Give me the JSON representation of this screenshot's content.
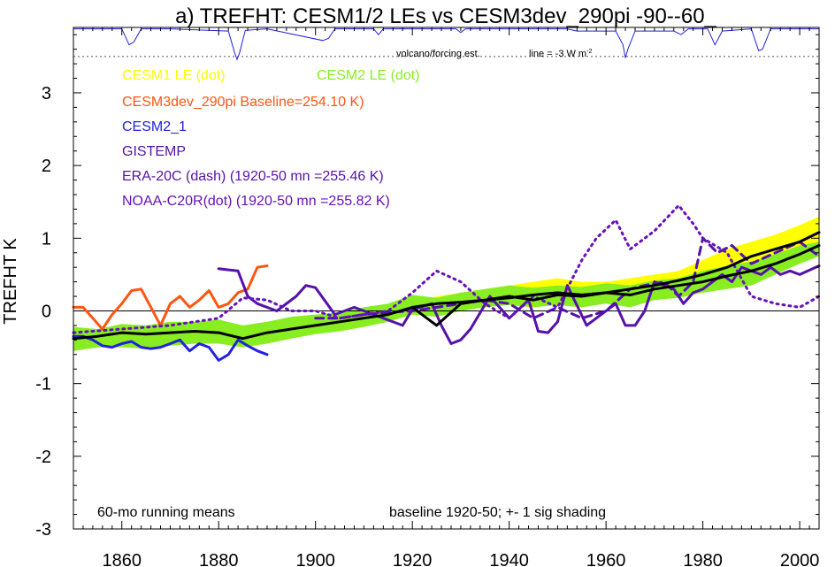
{
  "chart_data": {
    "type": "line",
    "title": "a) TREFHT: CESM1/2 LEs vs CESM3dev_290pi -90--60_",
    "ylabel": "TREFHT K",
    "xlabel": "",
    "xlim": [
      1850,
      2004
    ],
    "ylim": [
      -3,
      3.9
    ],
    "x_ticks": [
      1860,
      1880,
      1900,
      1920,
      1940,
      1960,
      1980,
      2000
    ],
    "y_ticks": [
      -3,
      -2,
      -1,
      0,
      1,
      2,
      3
    ],
    "zero_line": 0,
    "grid": false,
    "annotations": {
      "volcano_label": "volcano/forcing est.",
      "volcano_line_label": "line = -3 W m",
      "volcano_line_sup": "-2",
      "running_means": "60-mo running means",
      "baseline_note": "baseline 1920-50; +- 1 sig shading"
    },
    "colors": {
      "cesm1": "#ffff00",
      "cesm2": "#88ee22",
      "cesm3": "#ff5511",
      "cesm2_1": "#2222dd",
      "gistemp": "#5511aa",
      "era20c": "#5511aa",
      "noaa": "#6611bb",
      "mean": "#000000",
      "volcano": "#2222dd"
    },
    "legend": [
      {
        "label": "CESM1 LE (dot)",
        "color": "#ffff00"
      },
      {
        "label": "CESM2 LE (dot)",
        "color": "#88ee22"
      },
      {
        "label": "CESM3dev_290pi Baseline=254.10 K)",
        "color": "#ff5511"
      },
      {
        "label": "CESM2_1",
        "color": "#2222dd"
      },
      {
        "label": "GISTEMP",
        "color": "#5511aa"
      },
      {
        "label": "ERA-20C (dash) (1920-50 mn =255.46 K)",
        "color": "#5511aa"
      },
      {
        "label": "NOAA-C20R(dot) (1920-50 mn =255.82 K)",
        "color": "#6611bb"
      }
    ],
    "bands": [
      {
        "name": "CESM1 LE (dot)",
        "color": "#ffff00",
        "x": [
          1920,
          1925,
          1930,
          1935,
          1940,
          1945,
          1950,
          1955,
          1960,
          1965,
          1970,
          1975,
          1980,
          1985,
          1990,
          1995,
          2000,
          2004
        ],
        "lo": [
          0.0,
          0.0,
          0.05,
          0.08,
          0.1,
          0.12,
          0.12,
          0.14,
          0.18,
          0.2,
          0.25,
          0.3,
          0.38,
          0.45,
          0.58,
          0.7,
          0.85,
          0.95
        ],
        "hi": [
          0.12,
          0.2,
          0.25,
          0.3,
          0.35,
          0.4,
          0.45,
          0.4,
          0.4,
          0.45,
          0.5,
          0.55,
          0.7,
          0.85,
          0.95,
          1.05,
          1.18,
          1.3
        ]
      },
      {
        "name": "CESM2 LE (dot)",
        "color": "#88ee22",
        "x": [
          1850,
          1855,
          1860,
          1865,
          1870,
          1875,
          1880,
          1885,
          1890,
          1895,
          1900,
          1905,
          1910,
          1915,
          1920,
          1925,
          1930,
          1935,
          1940,
          1945,
          1950,
          1955,
          1960,
          1965,
          1970,
          1975,
          1980,
          1985,
          1990,
          1995,
          2000,
          2004
        ],
        "lo": [
          -0.55,
          -0.5,
          -0.5,
          -0.52,
          -0.48,
          -0.45,
          -0.45,
          -0.5,
          -0.45,
          -0.38,
          -0.32,
          -0.28,
          -0.22,
          -0.15,
          -0.05,
          -0.08,
          0.0,
          0.05,
          0.08,
          0.05,
          0.08,
          0.05,
          0.1,
          0.05,
          0.15,
          0.18,
          0.25,
          0.3,
          0.35,
          0.5,
          0.65,
          0.75
        ],
        "hi": [
          -0.22,
          -0.25,
          -0.18,
          -0.2,
          -0.15,
          -0.15,
          -0.12,
          -0.2,
          -0.15,
          -0.08,
          -0.05,
          -0.02,
          0.05,
          0.1,
          0.22,
          0.18,
          0.25,
          0.3,
          0.35,
          0.32,
          0.35,
          0.33,
          0.38,
          0.35,
          0.42,
          0.45,
          0.55,
          0.62,
          0.68,
          0.78,
          0.9,
          0.95
        ]
      }
    ],
    "series": [
      {
        "name": "CESM3dev_290pi Baseline=254.10 K)",
        "color": "#ff5511",
        "width": 3,
        "dash": "",
        "x": [
          1850,
          1852,
          1854,
          1856,
          1858,
          1860,
          1862,
          1864,
          1866,
          1868,
          1870,
          1872,
          1874,
          1876,
          1878,
          1880,
          1882,
          1884,
          1886,
          1888,
          1890
        ],
        "y": [
          0.05,
          0.05,
          -0.1,
          -0.25,
          -0.05,
          0.1,
          0.28,
          0.3,
          0.05,
          -0.2,
          0.1,
          0.2,
          0.05,
          0.15,
          0.28,
          0.05,
          0.1,
          0.25,
          0.3,
          0.6,
          0.62
        ]
      },
      {
        "name": "CESM2_1",
        "color": "#2222dd",
        "width": 3,
        "dash": "",
        "x": [
          1850,
          1852,
          1854,
          1856,
          1858,
          1860,
          1862,
          1864,
          1866,
          1868,
          1870,
          1872,
          1874,
          1876,
          1878,
          1880,
          1882,
          1884,
          1886,
          1888,
          1890
        ],
        "y": [
          -0.35,
          -0.35,
          -0.4,
          -0.48,
          -0.5,
          -0.45,
          -0.42,
          -0.5,
          -0.52,
          -0.5,
          -0.45,
          -0.4,
          -0.55,
          -0.45,
          -0.5,
          -0.68,
          -0.6,
          -0.4,
          -0.48,
          -0.55,
          -0.6
        ]
      },
      {
        "name": "GISTEMP",
        "color": "#5511aa",
        "width": 3,
        "dash": "",
        "x": [
          1880,
          1884,
          1886,
          1888,
          1892,
          1896,
          1898,
          1900,
          1904,
          1908,
          1912,
          1914,
          1918,
          1920,
          1924,
          1926,
          1928,
          1930,
          1932,
          1936,
          1940,
          1944,
          1946,
          1948,
          1950,
          1952,
          1956,
          1958,
          1962,
          1964,
          1966,
          1968,
          1970,
          1974,
          1976,
          1978,
          1980,
          1984,
          1986,
          1988,
          1992,
          1994,
          1996,
          1998,
          2000,
          2004
        ],
        "y": [
          0.58,
          0.55,
          0.2,
          0.1,
          0.0,
          0.2,
          0.35,
          0.32,
          -0.05,
          0.05,
          -0.05,
          -0.1,
          -0.2,
          0.02,
          0.1,
          -0.2,
          -0.45,
          -0.4,
          -0.25,
          0.2,
          -0.1,
          0.15,
          -0.28,
          -0.3,
          -0.15,
          0.35,
          -0.2,
          -0.1,
          0.1,
          -0.2,
          -0.2,
          0.0,
          0.4,
          0.3,
          0.1,
          0.25,
          0.3,
          0.5,
          0.4,
          0.6,
          0.5,
          0.6,
          0.5,
          0.55,
          0.5,
          0.62
        ]
      },
      {
        "name": "ERA-20C (dash) (1920-50 mn =255.46 K)",
        "color": "#5511aa",
        "width": 3,
        "dash": "9 6",
        "x": [
          1900,
          1905,
          1910,
          1915,
          1920,
          1925,
          1930,
          1935,
          1940,
          1945,
          1950,
          1955,
          1960,
          1965,
          1968,
          1972,
          1975,
          1978,
          1980,
          1983,
          1986,
          1990,
          1995,
          2000,
          2004
        ],
        "y": [
          -0.1,
          -0.1,
          -0.05,
          -0.02,
          0.0,
          0.05,
          0.1,
          0.15,
          0.1,
          -0.1,
          0.05,
          -0.1,
          0.0,
          0.3,
          0.35,
          0.4,
          0.2,
          0.4,
          1.0,
          0.8,
          0.9,
          0.65,
          0.8,
          0.95,
          0.75
        ]
      },
      {
        "name": "NOAA-C20R(dot) (1920-50 mn =255.82 K)",
        "color": "#6611bb",
        "width": 3,
        "dash": "2 5",
        "x": [
          1850,
          1860,
          1870,
          1880,
          1885,
          1890,
          1895,
          1900,
          1905,
          1910,
          1915,
          1920,
          1925,
          1930,
          1935,
          1940,
          1945,
          1950,
          1955,
          1958,
          1962,
          1965,
          1970,
          1975,
          1978,
          1980,
          1985,
          1990,
          1995,
          2000,
          2004
        ],
        "y": [
          -0.3,
          -0.25,
          -0.2,
          -0.1,
          0.18,
          0.15,
          0.0,
          0.0,
          -0.1,
          -0.05,
          0.0,
          0.25,
          0.55,
          0.4,
          0.1,
          -0.1,
          0.2,
          0.05,
          0.7,
          1.0,
          1.25,
          0.85,
          1.1,
          1.45,
          1.2,
          1.0,
          0.8,
          0.2,
          0.1,
          0.05,
          0.2
        ]
      },
      {
        "name": "CESM1 LE mean",
        "color": "#000000",
        "width": 3,
        "dash": "",
        "x": [
          1920,
          1925,
          1930,
          1935,
          1940,
          1945,
          1950,
          1955,
          1960,
          1965,
          1970,
          1975,
          1980,
          1985,
          1990,
          1995,
          2000,
          2004
        ],
        "y": [
          0.05,
          0.1,
          0.12,
          0.15,
          0.18,
          0.22,
          0.25,
          0.22,
          0.25,
          0.3,
          0.35,
          0.42,
          0.5,
          0.6,
          0.75,
          0.85,
          0.95,
          1.08
        ]
      },
      {
        "name": "CESM2 LE mean",
        "color": "#000000",
        "width": 3,
        "dash": "",
        "x": [
          1850,
          1855,
          1860,
          1865,
          1870,
          1875,
          1880,
          1885,
          1890,
          1895,
          1900,
          1905,
          1910,
          1915,
          1920,
          1925,
          1930,
          1935,
          1940,
          1945,
          1950,
          1955,
          1960,
          1965,
          1970,
          1975,
          1980,
          1985,
          1990,
          1995,
          2000,
          2004
        ],
        "y": [
          -0.38,
          -0.35,
          -0.3,
          -0.32,
          -0.3,
          -0.28,
          -0.3,
          -0.38,
          -0.3,
          -0.25,
          -0.2,
          -0.15,
          -0.1,
          -0.05,
          0.05,
          -0.2,
          0.1,
          0.15,
          0.2,
          0.15,
          0.22,
          0.2,
          0.25,
          0.22,
          0.3,
          0.35,
          0.4,
          0.48,
          0.55,
          0.65,
          0.78,
          0.9
        ]
      }
    ],
    "volcano_series": {
      "x": [
        1850,
        1860,
        1861.5,
        1862.5,
        1864,
        1870,
        1882,
        1883.3,
        1883.8,
        1884.3,
        1885.5,
        1890,
        1901.5,
        1902.7,
        1904,
        1912,
        1913,
        1914,
        1929,
        1930,
        1931,
        1952,
        1954,
        1962,
        1963.5,
        1964,
        1964.5,
        1966,
        1974,
        1975.5,
        1977,
        1981,
        1982.5,
        1984,
        1990,
        1991.5,
        1992.3,
        1994,
        2004
      ],
      "y": [
        3.88,
        3.88,
        3.66,
        3.7,
        3.88,
        3.88,
        3.85,
        3.55,
        3.46,
        3.55,
        3.86,
        3.88,
        3.72,
        3.75,
        3.88,
        3.88,
        3.8,
        3.88,
        3.88,
        3.83,
        3.88,
        3.88,
        3.85,
        3.85,
        3.66,
        3.48,
        3.6,
        3.85,
        3.85,
        3.8,
        3.88,
        3.88,
        3.66,
        3.85,
        3.88,
        3.58,
        3.6,
        3.88,
        3.88
      ],
      "threshold": 3.5
    }
  }
}
